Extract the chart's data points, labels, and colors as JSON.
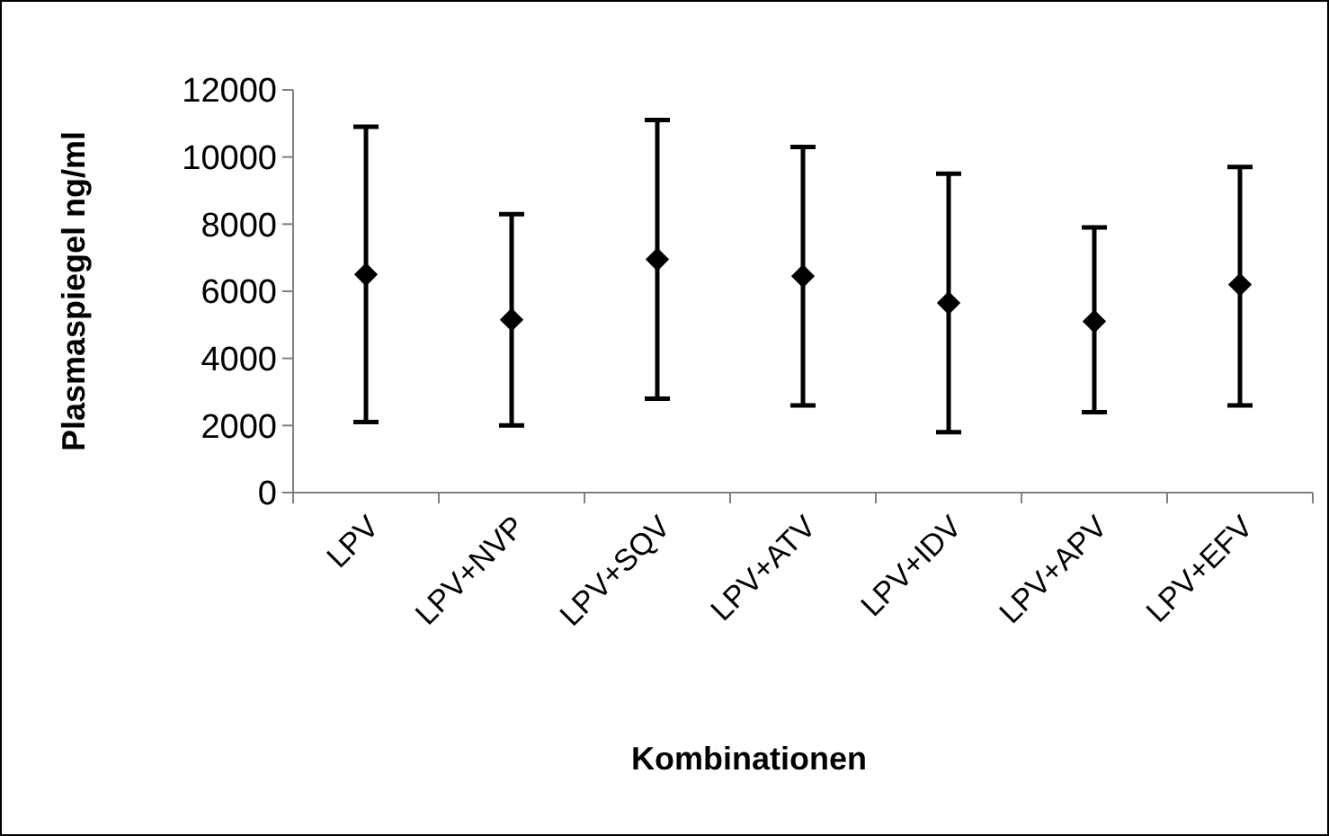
{
  "chart_data": {
    "type": "scatter",
    "xlabel": "Kombinationen",
    "ylabel": "Plasmaspiegel ng/ml",
    "categories": [
      "LPV",
      "LPV+NVP",
      "LPV+SQV",
      "LPV+ATV",
      "LPV+IDV",
      "LPV+APV",
      "LPV+EFV"
    ],
    "series": [
      {
        "color": "#000000",
        "values": [
          6500,
          5150,
          6950,
          6450,
          5650,
          5100,
          6200
        ],
        "errors": [
          [
            2100,
            10900
          ],
          [
            2000,
            8300
          ],
          [
            2800,
            11100
          ],
          [
            2600,
            10300
          ],
          [
            1800,
            9500
          ],
          [
            2400,
            7900
          ],
          [
            2600,
            9700
          ]
        ]
      }
    ],
    "marker": "diamond",
    "ylim": [
      0,
      12000
    ],
    "yticks": [
      0,
      2000,
      4000,
      6000,
      8000,
      10000,
      12000
    ],
    "grid": false
  }
}
